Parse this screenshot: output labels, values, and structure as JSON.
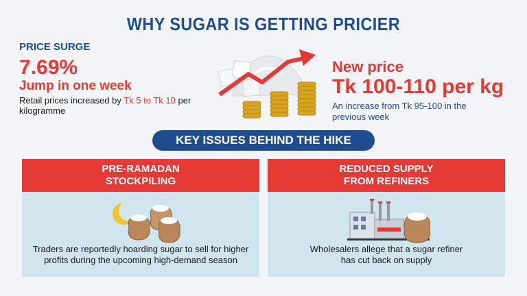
{
  "title": "WHY SUGAR IS GETTING PRICIER",
  "price_surge": {
    "label": "PRICE SURGE",
    "percent": "7.69%",
    "jump": "Jump in one week",
    "retail_prefix": "Retail prices increased by ",
    "retail_highlight": "Tk 5 to Tk 10",
    "retail_suffix": " per kilogramme"
  },
  "new_price": {
    "label": "New price",
    "value": "Tk 100-110 per kg",
    "increase_note": "An increase from Tk 95-100 in the previous week"
  },
  "banner": "KEY ISSUES BEHIND THE HIKE",
  "issues": [
    {
      "heading_line1": "PRE-RAMADAN",
      "heading_line2": "STOCKPILING",
      "text_line1": "Traders are reportedly hoarding sugar to sell for higher",
      "text_line2": "profits during the upcoming high-demand season",
      "icon": "moon-sugar-sacks-icon"
    },
    {
      "heading_line1": "REDUCED SUPPLY",
      "heading_line2": "FROM REFINERS",
      "text_line1": "Wholesalers allege that a sugar refiner",
      "text_line2": "has cut back on supply",
      "icon": "factory-sugar-sack-icon"
    }
  ],
  "colors": {
    "blue": "#1d4d8f",
    "red": "#e53935",
    "card_bg": "#cfe6ef"
  }
}
